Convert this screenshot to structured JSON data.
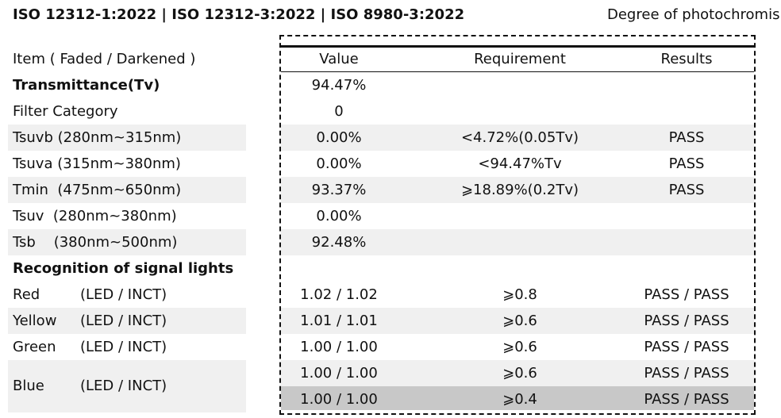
{
  "header": {
    "title": "ISO 12312-1:2022 | ISO 12312-3:2022 | ISO 8980-3:2022",
    "right_text": "Degree of photochromis"
  },
  "table": {
    "columns": [
      "Item ( Faded / Darkened )",
      "Value",
      "Requirement",
      "Results"
    ],
    "rows": [
      {
        "label": "Transmittance(Tv)",
        "value": "94.47%"
      },
      {
        "label": "Filter Category",
        "value": "0"
      },
      {
        "label": "Tsuvb (280nm~315nm)",
        "value": "0.00%",
        "requirement": "<4.72%(0.05Tv)",
        "result": "PASS"
      },
      {
        "label": "Tsuva (315nm~380nm)",
        "value": "0.00%",
        "requirement": "<94.47%Tv",
        "result": "PASS"
      },
      {
        "label": "Tmin  (475nm~650nm)",
        "value": "93.37%",
        "requirement": "⩾18.89%(0.2Tv)",
        "result": "PASS"
      },
      {
        "label": "Tsuv  (280nm~380nm)",
        "value": "0.00%"
      },
      {
        "label": "Tsb    (380nm~500nm)",
        "value": "92.48%"
      },
      {
        "label": "Recognition of signal lights"
      },
      {
        "label": "Red",
        "detail": "(LED / INCT)",
        "value": "1.02 / 1.02",
        "requirement": "⩾0.8",
        "result": "PASS / PASS"
      },
      {
        "label": "Yellow",
        "detail": "(LED / INCT)",
        "value": "1.01 / 1.01",
        "requirement": "⩾0.6",
        "result": "PASS / PASS"
      },
      {
        "label": "Green",
        "detail": "(LED / INCT)",
        "value": "1.00 / 1.00",
        "requirement": "⩾0.6",
        "result": "PASS / PASS"
      },
      {
        "label": "Blue",
        "detail": "(LED / INCT)",
        "value": "1.00 / 1.00",
        "requirement": "⩾0.6",
        "result": "PASS / PASS"
      },
      {
        "value": "1.00 / 1.00",
        "requirement": "⩾0.4",
        "result": "PASS / PASS"
      }
    ]
  }
}
